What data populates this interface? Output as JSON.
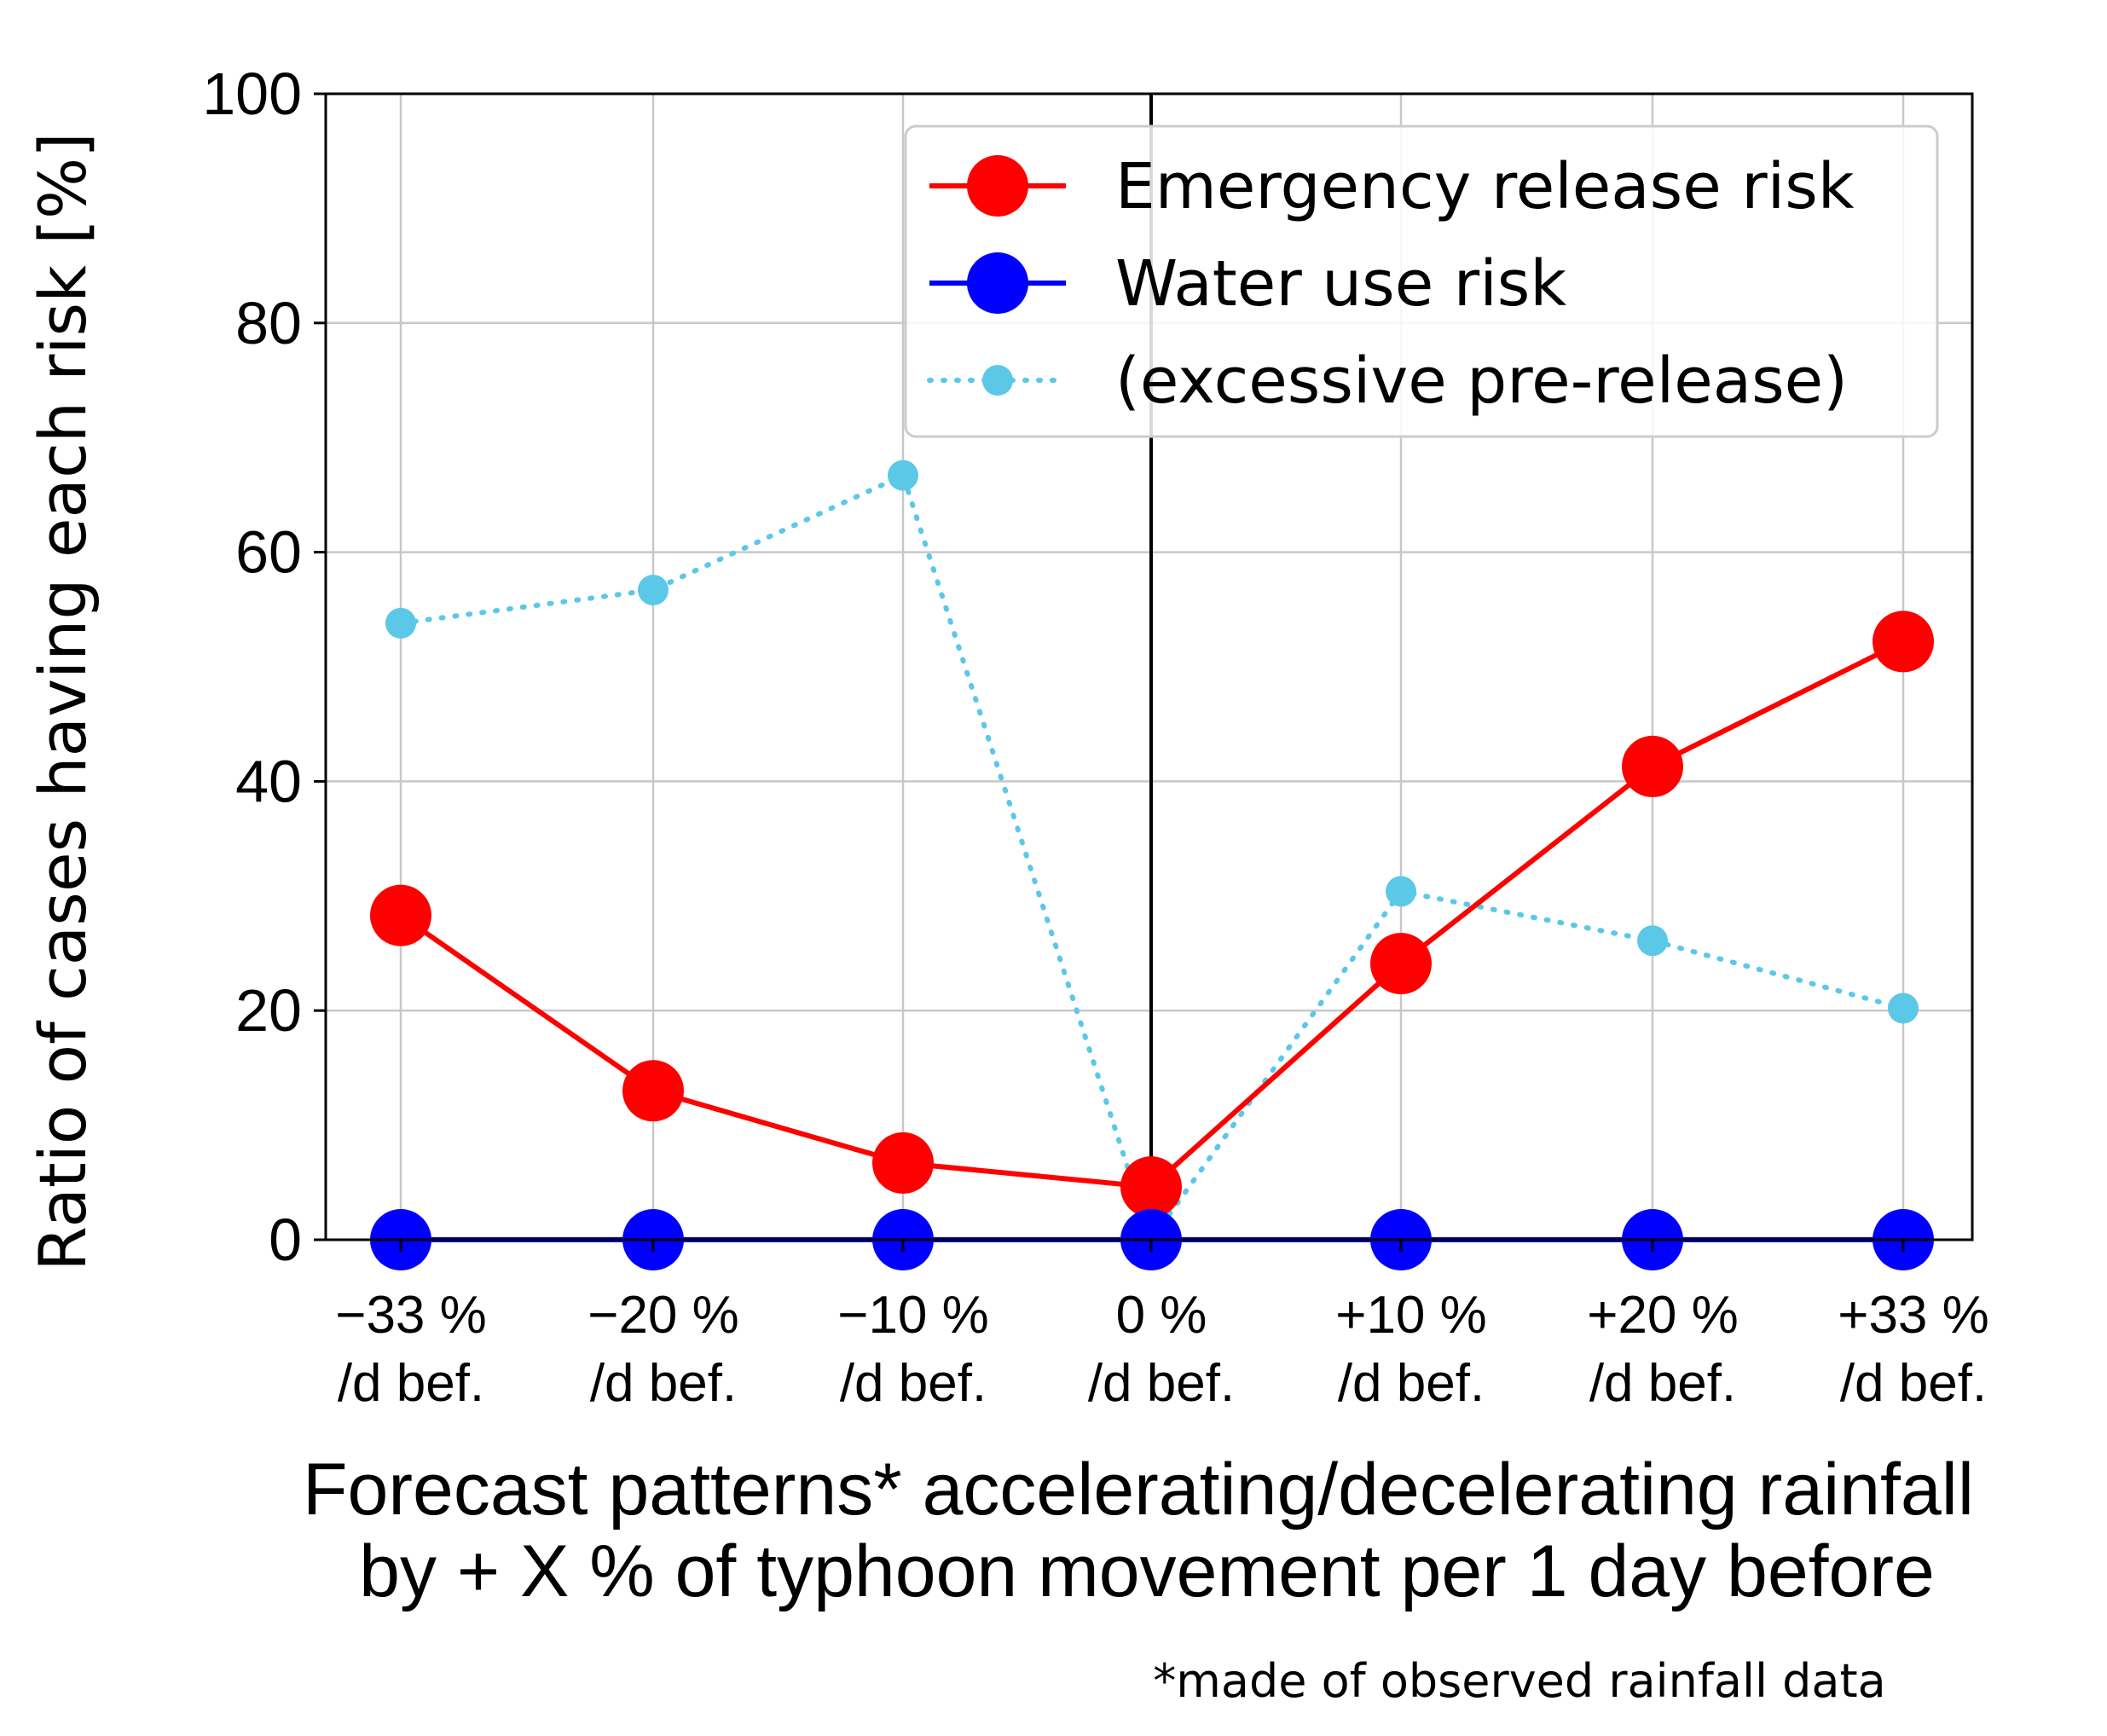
{
  "chart_data": {
    "type": "line",
    "ylabel": "Ratio of cases having each risk [%]",
    "xlabel_line1": "Forecast patterns* accelerating/decelerating rainfall",
    "xlabel_line2": "by + X % of typhoon movement per 1 day before",
    "footnote": "*made of observed rainfall data",
    "ylim": [
      0,
      100
    ],
    "yticks": [
      "0",
      "20",
      "40",
      "60",
      "80",
      "100"
    ],
    "ytick_values": [
      0,
      20,
      40,
      60,
      80,
      100
    ],
    "categories": [
      {
        "line1": "−33 %",
        "line2": "/d bef."
      },
      {
        "line1": "−20 %",
        "line2": "/d bef."
      },
      {
        "line1": "−10 %",
        "line2": "/d bef."
      },
      {
        "line1": "0 %",
        "line2": "/d bef."
      },
      {
        "line1": "+10 %",
        "line2": "/d bef."
      },
      {
        "line1": "+20 %",
        "line2": "/d bef."
      },
      {
        "line1": "+33 %",
        "line2": "/d bef."
      }
    ],
    "reference_line_category_index": 3,
    "grid": true,
    "legend_position": "top-right",
    "series": [
      {
        "name": "Emergency release risk",
        "color": "#ff0000",
        "style": "solid",
        "marker": "large-circle",
        "values": [
          28.3,
          13.0,
          6.7,
          4.6,
          24.1,
          41.3,
          52.2
        ]
      },
      {
        "name": "Water use risk",
        "color": "#0000ff",
        "style": "solid",
        "marker": "large-circle",
        "values": [
          0,
          0,
          0,
          0,
          0,
          0,
          0
        ]
      },
      {
        "name": "(excessive pre-release)",
        "color": "#5bc8e8",
        "style": "dotted",
        "marker": "small-circle",
        "values": [
          53.8,
          56.7,
          66.7,
          0,
          30.4,
          26.1,
          20.2
        ]
      }
    ]
  }
}
